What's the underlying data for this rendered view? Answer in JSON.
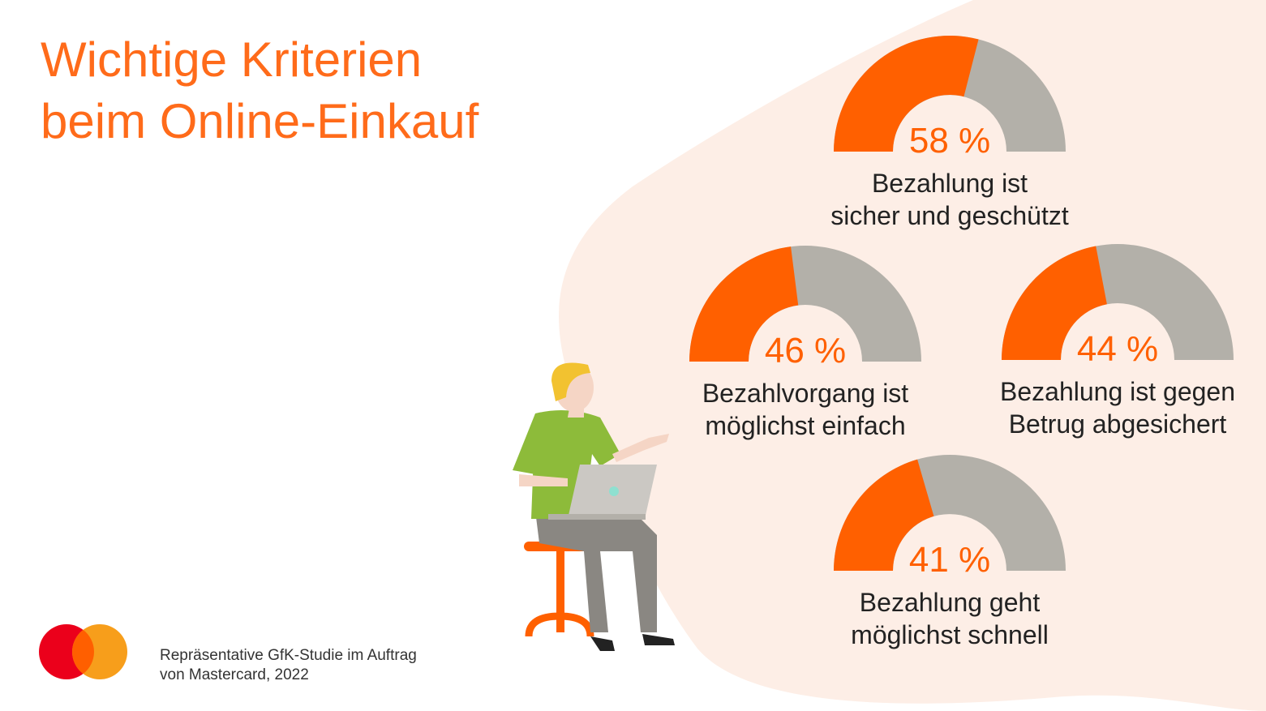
{
  "title": [
    "Wichtige Kriterien",
    "beim Online-Einkauf"
  ],
  "footnote": [
    "Repräsentative GfK-Studie im Auftrag",
    "von Mastercard, 2022"
  ],
  "chart_data": [
    {
      "type": "gauge",
      "values": [
        58
      ],
      "value_labels": [
        "58 %"
      ],
      "label": [
        "Bezahlung ist",
        "sicher und geschützt"
      ],
      "ylim": [
        0,
        100
      ],
      "color": "#ff6000",
      "track_color": "#b3b0a9"
    },
    {
      "type": "gauge",
      "values": [
        46
      ],
      "value_labels": [
        "46 %"
      ],
      "label": [
        "Bezahlvorgang ist",
        "möglichst einfach"
      ],
      "ylim": [
        0,
        100
      ],
      "color": "#ff6000",
      "track_color": "#b3b0a9"
    },
    {
      "type": "gauge",
      "values": [
        44
      ],
      "value_labels": [
        "44 %"
      ],
      "label": [
        "Bezahlung ist gegen",
        "Betrug abgesichert"
      ],
      "ylim": [
        0,
        100
      ],
      "color": "#ff6000",
      "track_color": "#b3b0a9"
    },
    {
      "type": "gauge",
      "values": [
        41
      ],
      "value_labels": [
        "41 %"
      ],
      "label": [
        "Bezahlung geht",
        "möglichst schnell"
      ],
      "ylim": [
        0,
        100
      ],
      "color": "#ff6000",
      "track_color": "#b3b0a9"
    }
  ]
}
